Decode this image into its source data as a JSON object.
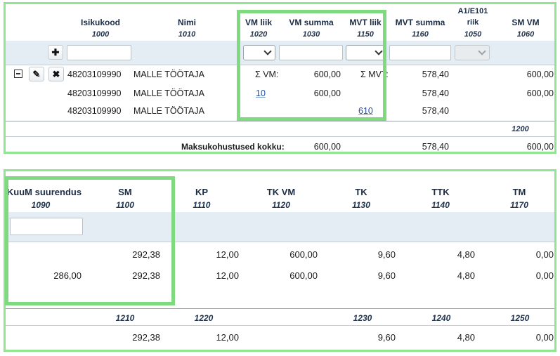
{
  "top": {
    "columns": [
      {
        "name": "Isikukood",
        "code": "1000"
      },
      {
        "name": "Nimi",
        "code": "1010"
      },
      {
        "name": "VM liik",
        "code": "1020"
      },
      {
        "name": "VM summa",
        "code": "1030"
      },
      {
        "name": "MVT liik",
        "code": "1150"
      },
      {
        "name": "MVT summa",
        "code": "1160"
      },
      {
        "name_line1": "A1/E101",
        "name_line2": "riik",
        "code": "1050"
      },
      {
        "name": "SM VM",
        "code": "1060"
      }
    ],
    "rows": [
      {
        "isikukood": "48203109990",
        "nimi": "MALLE TÖÖTAJA",
        "vm_liik": "Σ VM:",
        "vm_summa": "600,00",
        "mvt_liik": "Σ MVT:",
        "mvt_summa": "578,40",
        "sm_vm": "600,00"
      },
      {
        "isikukood": "48203109990",
        "nimi": "MALLE TÖÖTAJA",
        "vm_liik": "10",
        "vm_summa": "600,00",
        "mvt_liik": "",
        "mvt_summa": "578,40",
        "sm_vm": "600,00"
      },
      {
        "isikukood": "48203109990",
        "nimi": "MALLE TÖÖTAJA",
        "vm_liik": "",
        "vm_summa": "",
        "mvt_liik": "610",
        "mvt_summa": "578,40",
        "sm_vm": ""
      }
    ],
    "footer_code": "1200",
    "total_label": "Maksukohustused kokku:",
    "totals": {
      "vm_summa": "600,00",
      "mvt_summa": "578,40",
      "sm_vm": "600,00"
    }
  },
  "bottom": {
    "columns": [
      {
        "name": "KuuM suurendus",
        "code": "1090"
      },
      {
        "name": "SM",
        "code": "1100"
      },
      {
        "name": "KP",
        "code": "1110"
      },
      {
        "name": "TK VM",
        "code": "1120"
      },
      {
        "name": "TK",
        "code": "1130"
      },
      {
        "name": "TTK",
        "code": "1140"
      },
      {
        "name": "TM",
        "code": "1170"
      }
    ],
    "rows": [
      {
        "kuum": "",
        "sm": "292,38",
        "kp": "12,00",
        "tkvm": "600,00",
        "tk": "9,60",
        "ttk": "4,80",
        "tm": "0,00"
      },
      {
        "kuum": "286,00",
        "sm": "292,38",
        "kp": "12,00",
        "tkvm": "600,00",
        "tk": "9,60",
        "ttk": "4,80",
        "tm": "0,00"
      }
    ],
    "footer_codes": {
      "sm": "1210",
      "kp": "1220",
      "tk": "1230",
      "ttk": "1240",
      "tm": "1250"
    },
    "totals": {
      "sm": "292,38",
      "kp": "12,00",
      "tk": "9,60",
      "ttk": "4,80",
      "tm": "0,00"
    }
  }
}
